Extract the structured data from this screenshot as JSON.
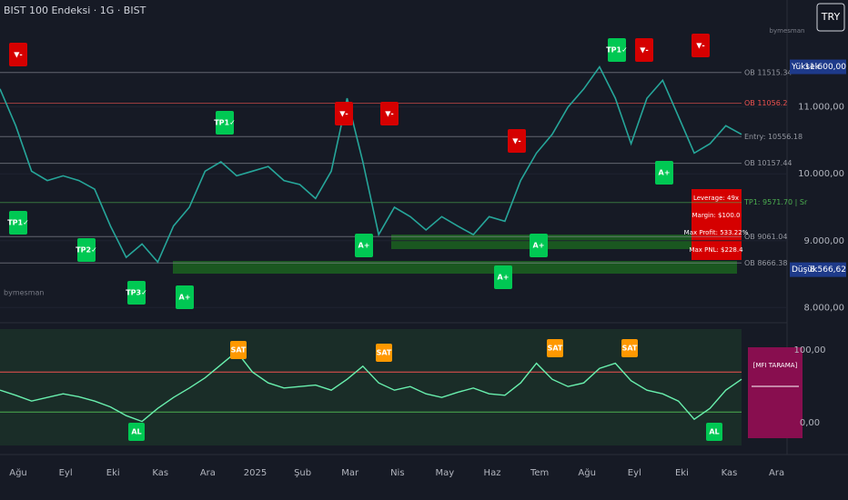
{
  "header": {
    "title": "BIST 100 Endeksi · 1G · BIST",
    "currency": "TRY",
    "watermark": "bymesman",
    "watermark_top": "bymesman"
  },
  "price_axis": {
    "ylim": [
      7800,
      12600
    ],
    "ticks": [
      {
        "value": 8000,
        "label": "8.000,00"
      },
      {
        "value": 9000,
        "label": "9.000,00"
      },
      {
        "value": 10000,
        "label": "10.000,00"
      },
      {
        "value": 11000,
        "label": "11.000,00"
      }
    ],
    "high": {
      "name": "Yüksek",
      "value": 11600,
      "label": "11.600,00"
    },
    "low": {
      "name": "Düşük",
      "value": 8566.62,
      "label": "8.566,62"
    }
  },
  "price": {
    "color": "#26a69a",
    "values": [
      11270,
      10720,
      10040,
      9900,
      9970,
      9900,
      9770,
      9220,
      8750,
      8950,
      8680,
      9220,
      9500,
      10040,
      10180,
      9970,
      10040,
      10110,
      9900,
      9840,
      9630,
      10040,
      11130,
      10180,
      9090,
      9500,
      9360,
      9160,
      9360,
      9220,
      9090,
      9360,
      9290,
      9900,
      10310,
      10590,
      11000,
      11270,
      11600,
      11130,
      10450,
      11130,
      11400,
      10860,
      10310,
      10450,
      10720,
      10590
    ]
  },
  "levels": [
    {
      "text": "OB 11515.34",
      "value": 11515.34
    },
    {
      "text": "OB 11056.2",
      "value": 11056.2
    },
    {
      "text": "Entry: 10556.18",
      "value": 10556.18
    },
    {
      "text": "OB 10157.44",
      "value": 10157.44
    },
    {
      "text": "TP1: 9571.70 | Sr",
      "value": 9571.7
    },
    {
      "text": "OB 9061.04",
      "value": 9061.04
    },
    {
      "text": "OB 8666.38",
      "value": 8666.38
    }
  ],
  "signals": [
    {
      "text": "▼-",
      "color": "#d50000"
    },
    {
      "text": "TP1✓",
      "color": "#00c853"
    },
    {
      "text": "TP2✓",
      "color": "#00c853"
    },
    {
      "text": "TP3✓",
      "color": "#00c853"
    },
    {
      "text": "A+",
      "color": "#00c853"
    },
    {
      "text": "TP1✓",
      "color": "#00c853"
    },
    {
      "text": "▼-",
      "color": "#d50000"
    },
    {
      "text": "▼-",
      "color": "#d50000"
    },
    {
      "text": "A+",
      "color": "#00c853"
    },
    {
      "text": "A+",
      "color": "#00c853"
    },
    {
      "text": "▼-",
      "color": "#d50000"
    },
    {
      "text": "A+",
      "color": "#00c853"
    },
    {
      "text": "TP1✓",
      "color": "#00c853"
    },
    {
      "text": "▼-",
      "color": "#d50000"
    },
    {
      "text": "A+",
      "color": "#00c853"
    },
    {
      "text": "▼-",
      "color": "#d50000"
    }
  ],
  "trade_box": {
    "lines": [
      "Leverage: 49x",
      "Margin: $100.0",
      "Max Profit: 533.22%",
      "Max PNL: $228.4"
    ]
  },
  "oscillator": {
    "ylim": [
      -31,
      129
    ],
    "ticks": [
      {
        "value": 100,
        "label": "100,00"
      },
      {
        "value": 0,
        "label": "0,00"
      }
    ],
    "upper": 70,
    "lower": 15,
    "values": [
      45,
      38,
      30,
      35,
      40,
      36,
      30,
      22,
      10,
      2,
      20,
      35,
      48,
      62,
      80,
      98,
      70,
      55,
      48,
      50,
      52,
      45,
      60,
      78,
      55,
      45,
      50,
      40,
      35,
      42,
      48,
      40,
      38,
      55,
      82,
      60,
      50,
      55,
      75,
      82,
      58,
      45,
      40,
      30,
      5,
      20,
      45,
      60
    ],
    "table_title": "[MFI TARAMA]"
  },
  "osc_signals": [
    {
      "text": "AL",
      "color": "#00c853"
    },
    {
      "text": "SAT",
      "color": "#ff9800"
    },
    {
      "text": "SAT",
      "color": "#ff9800"
    },
    {
      "text": "SAT",
      "color": "#ff9800"
    },
    {
      "text": "SAT",
      "color": "#ff9800"
    },
    {
      "text": "AL",
      "color": "#00c853"
    }
  ],
  "time_axis": [
    "Ağu",
    "Eyl",
    "Eki",
    "Kas",
    "Ara",
    "2025",
    "Şub",
    "Mar",
    "Nis",
    "May",
    "Haz",
    "Tem",
    "Ağu",
    "Eyl",
    "Eki",
    "Kas",
    "Ara"
  ]
}
